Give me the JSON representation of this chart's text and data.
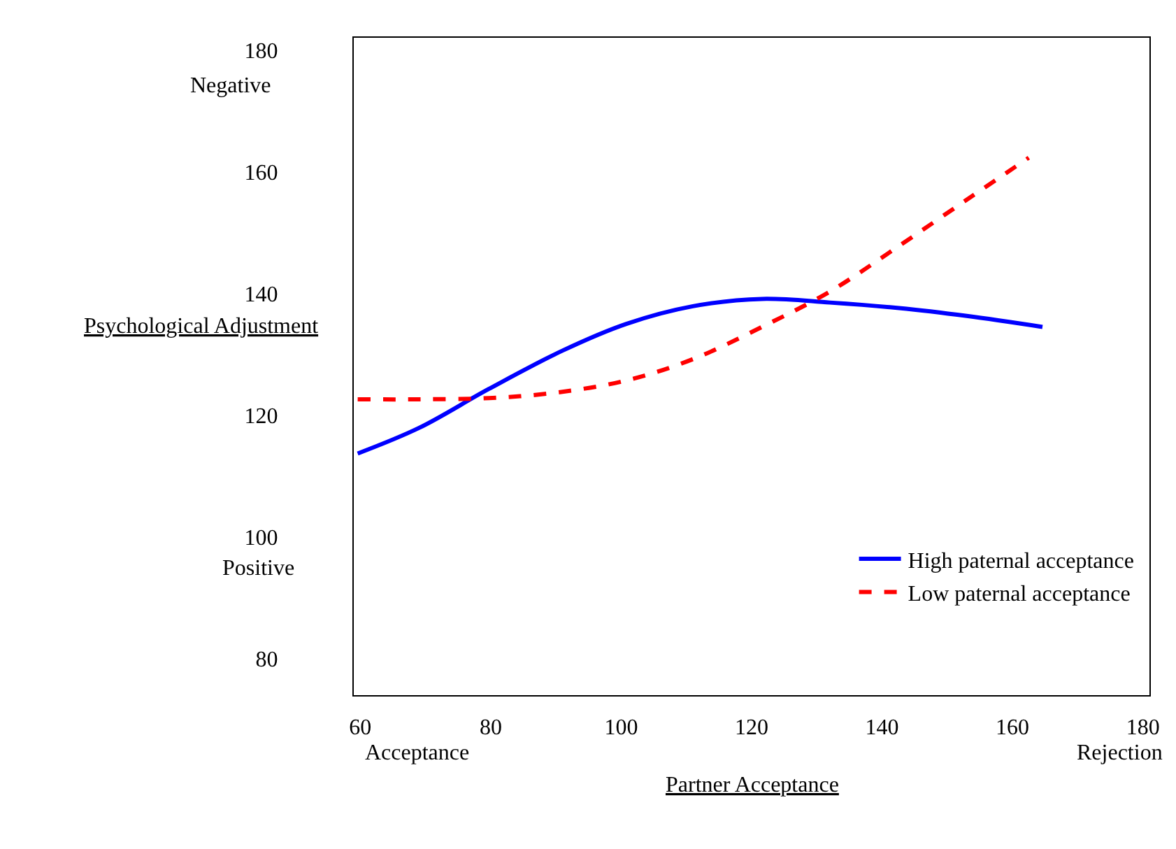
{
  "chart_data": {
    "type": "line",
    "xlabel": "Partner Acceptance",
    "ylabel": "Psychological Adjustment",
    "annotations": [
      "Negative",
      "Positive",
      "Acceptance",
      "Rejection"
    ],
    "xlim": [
      59,
      181
    ],
    "xticks": [
      60,
      80,
      100,
      120,
      140,
      160,
      180
    ],
    "ylim": [
      74,
      182
    ],
    "yticks": [
      80,
      100,
      120,
      140,
      160,
      180
    ],
    "legend": "bottom right",
    "series": [
      {
        "name": "High paternal acceptance",
        "color": "#0000ff",
        "line_style": "solid",
        "x": [
          59.6,
          69,
          79.7,
          91,
          100.8,
          111,
          121.6,
          132,
          142.6,
          153,
          164.6
        ],
        "values": [
          113.7,
          117.9,
          124.3,
          130.6,
          135,
          137.9,
          139.1,
          138.5,
          137.6,
          136.3,
          134.5
        ]
      },
      {
        "name": "Low paternal acceptance",
        "color": "#ff0000",
        "line_style": "dashed",
        "x": [
          59.6,
          69,
          79.7,
          90,
          100.8,
          111,
          121.6,
          132,
          142.6,
          153,
          162.5
        ],
        "values": [
          122.6,
          122.6,
          122.8,
          123.7,
          125.7,
          129.2,
          134.5,
          140.3,
          147.8,
          155.4,
          162.3
        ]
      }
    ]
  }
}
